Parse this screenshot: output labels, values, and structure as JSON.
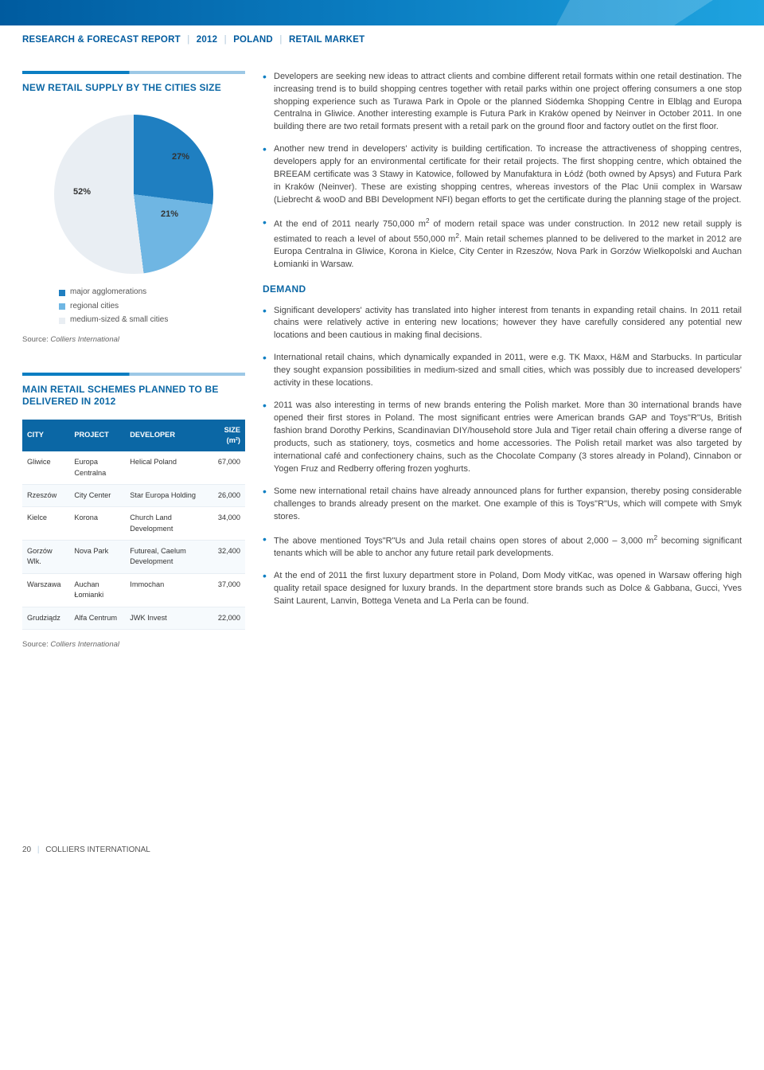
{
  "header": {
    "title_segments": [
      "RESEARCH & FORECAST REPORT",
      "2012",
      "POLAND",
      "RETAIL MARKET"
    ]
  },
  "pie_block": {
    "title": "NEW RETAIL SUPPLY BY THE CITIES SIZE",
    "chart": {
      "type": "pie",
      "slices": [
        {
          "label": "major agglomerations",
          "value": 27,
          "color": "#1f7fc1",
          "label_text": "27%"
        },
        {
          "label": "regional cities",
          "value": 21,
          "color": "#6fb6e3",
          "label_text": "21%"
        },
        {
          "label": "medium-sized & small cities",
          "value": 52,
          "color": "#e9eef3",
          "label_text": "52%"
        }
      ],
      "label_fontsize": 11,
      "label_color": "#333333",
      "background_color": "#ffffff"
    },
    "legend": [
      {
        "swatch": "#1f7fc1",
        "text": "major agglomerations"
      },
      {
        "swatch": "#6fb6e3",
        "text": "regional cities"
      },
      {
        "swatch": "#e9eef3",
        "text": "medium-sized & small cities"
      }
    ],
    "source_prefix": "Source: ",
    "source_name": "Colliers International"
  },
  "table_block": {
    "title": "MAIN RETAIL SCHEMES PLANNED TO BE DELIVERED IN 2012",
    "columns": [
      "CITY",
      "PROJECT",
      "DEVELOPER",
      "SIZE (m²)"
    ],
    "header_bg": "#0b67a5",
    "header_color": "#ffffff",
    "rows": [
      [
        "Gliwice",
        "Europa Centralna",
        "Helical Poland",
        "67,000"
      ],
      [
        "Rzeszów",
        "City Center",
        "Star Europa Holding",
        "26,000"
      ],
      [
        "Kielce",
        "Korona",
        "Church Land Development",
        "34,000"
      ],
      [
        "Gorzów Wlk.",
        "Nova Park",
        "Futureal, Caelum Development",
        "32,400"
      ],
      [
        "Warszawa",
        "Auchan Łomianki",
        "Immochan",
        "37,000"
      ],
      [
        "Grudziądz",
        "Alfa Centrum",
        "JWK Invest",
        "22,000"
      ]
    ],
    "source_prefix": "Source: ",
    "source_name": "Colliers International"
  },
  "body": {
    "bullets_top": [
      "Developers are seeking new ideas to attract clients and combine different retail formats within one retail destination. The increasing trend is to build shopping centres together with retail parks within one project offering consumers a one stop shopping experience such as Turawa Park in Opole or the planned Siódemka Shopping Centre in Elbląg and Europa Centralna in Gliwice. Another interesting example is Futura Park in Kraków opened by Neinver in October 2011. In one building there are two retail formats present with a retail park on the ground floor and factory outlet on the first floor.",
      "Another new trend in developers' activity is building certification. To increase the attractiveness of shopping centres, developers apply for an environmental certificate for their retail projects. The first shopping centre, which obtained the BREEAM certificate was 3 Stawy in Katowice, followed by Manufaktura in Łódź (both owned by Apsys) and Futura Park in Kraków (Neinver). These are existing shopping centres, whereas investors of the Plac Unii complex in Warsaw (Liebrecht & wooD and BBI Development NFI) began efforts to get the certificate during the planning stage of the project.",
      "At the end of 2011 nearly 750,000 m² of modern retail space was under construction. In 2012 new retail supply is estimated to reach a level of about 550,000 m². Main retail schemes planned to be delivered to the market in 2012 are Europa Centralna in Gliwice, Korona in Kielce, City Center in Rzeszów, Nova Park in Gorzów Wielkopolski and Auchan Łomianki in Warsaw."
    ],
    "demand_heading": "DEMAND",
    "bullets_demand": [
      "Significant developers' activity has translated into higher interest from tenants in expanding retail chains. In 2011 retail chains were relatively active in entering new locations; however they have carefully considered any potential new locations and been cautious in making final decisions.",
      "International retail chains, which dynamically expanded in 2011, were e.g. TK Maxx, H&M and Starbucks. In particular they sought expansion possibilities in medium-sized and small cities, which was possibly due to increased developers' activity in these locations.",
      "2011 was also interesting in terms of new brands entering the Polish market. More than 30 international brands have opened their first stores in Poland. The most significant entries were American brands GAP and Toys\"R\"Us, British fashion brand Dorothy Perkins, Scandinavian DIY/household store Jula and Tiger retail chain offering a diverse range of products, such as stationery, toys, cosmetics and home accessories. The Polish retail market was also targeted by international café and confectionery chains, such as the Chocolate Company (3 stores already in Poland), Cinnabon or Yogen Fruz and Redberry offering frozen yoghurts.",
      "Some new international retail chains have already announced plans for further expansion, thereby posing considerable challenges to brands already present on the market. One example of this is  Toys\"R\"Us, which will compete with Smyk stores.",
      "The above mentioned Toys\"R\"Us and Jula retail chains open stores of about 2,000 – 3,000 m² becoming significant tenants which will be able to anchor any future retail park developments.",
      "At the end of 2011 the first luxury department store in Poland, Dom Mody vitKac, was opened in Warsaw offering high quality retail space designed for luxury brands. In the department store brands such as Dolce & Gabbana, Gucci, Yves Saint Laurent, Lanvin, Bottega Veneta and La Perla can be found."
    ]
  },
  "footer": {
    "page_number": "20",
    "brand": "COLLIERS INTERNATIONAL"
  }
}
